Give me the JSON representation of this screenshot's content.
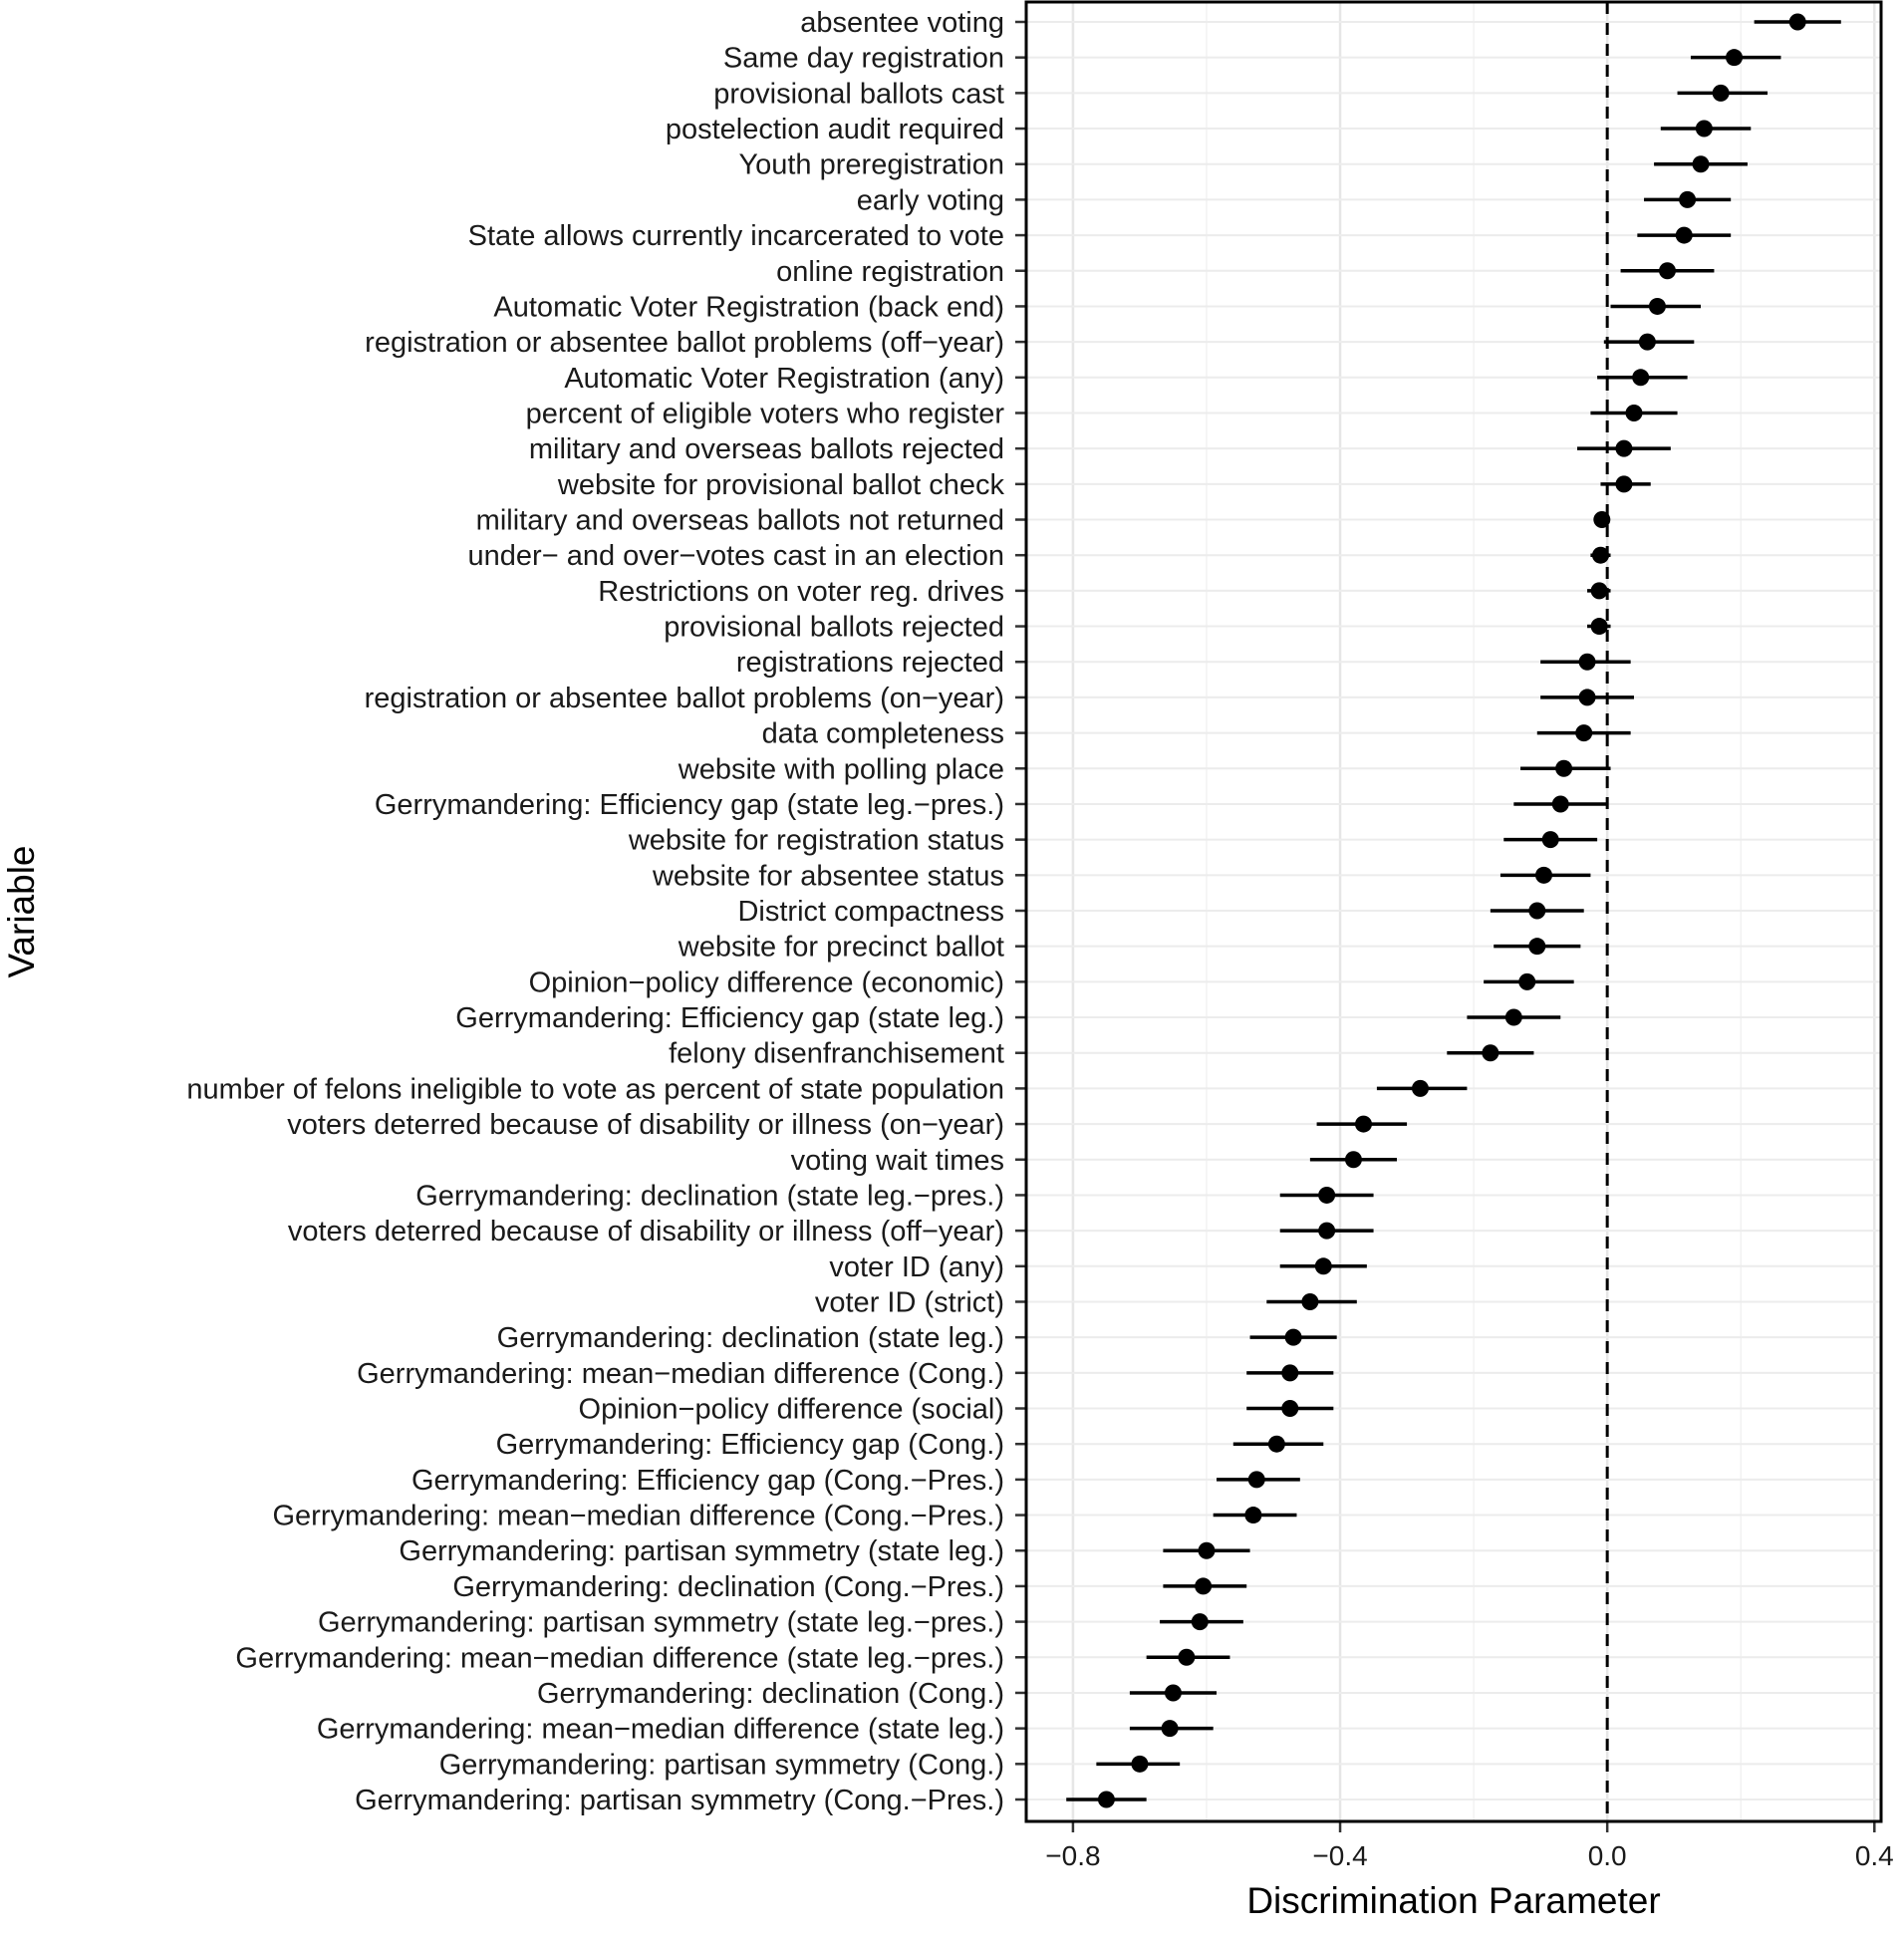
{
  "chart_data": {
    "type": "scatter",
    "orientation": "horizontal",
    "title": "",
    "xlabel": "Discrimination Parameter",
    "ylabel": "Variable",
    "xlim": [
      -0.87,
      0.41
    ],
    "x_ticks": [
      -0.8,
      -0.4,
      0.0,
      0.4
    ],
    "x_tick_labels": [
      "−0.8",
      "−0.4",
      "0.0",
      "0.4"
    ],
    "reference_line": {
      "x": 0.0,
      "style": "dashed"
    },
    "grid": true,
    "points": [
      {
        "label": "absentee voting",
        "estimate": 0.285,
        "lower": 0.22,
        "upper": 0.35
      },
      {
        "label": "Same day registration",
        "estimate": 0.19,
        "lower": 0.125,
        "upper": 0.26
      },
      {
        "label": "provisional ballots cast",
        "estimate": 0.17,
        "lower": 0.105,
        "upper": 0.24
      },
      {
        "label": "postelection audit required",
        "estimate": 0.145,
        "lower": 0.08,
        "upper": 0.215
      },
      {
        "label": "Youth preregistration",
        "estimate": 0.14,
        "lower": 0.07,
        "upper": 0.21
      },
      {
        "label": "early voting",
        "estimate": 0.12,
        "lower": 0.055,
        "upper": 0.185
      },
      {
        "label": "State allows currently incarcerated to vote",
        "estimate": 0.115,
        "lower": 0.045,
        "upper": 0.185
      },
      {
        "label": "online registration",
        "estimate": 0.09,
        "lower": 0.02,
        "upper": 0.16
      },
      {
        "label": "Automatic Voter Registration (back end)",
        "estimate": 0.075,
        "lower": 0.005,
        "upper": 0.14
      },
      {
        "label": "registration or absentee ballot problems (off−year)",
        "estimate": 0.06,
        "lower": -0.005,
        "upper": 0.13
      },
      {
        "label": "Automatic Voter Registration (any)",
        "estimate": 0.05,
        "lower": -0.015,
        "upper": 0.12
      },
      {
        "label": "percent of eligible voters who register",
        "estimate": 0.04,
        "lower": -0.025,
        "upper": 0.105
      },
      {
        "label": "military and overseas ballots rejected",
        "estimate": 0.025,
        "lower": -0.045,
        "upper": 0.095
      },
      {
        "label": "website for provisional ballot check",
        "estimate": 0.025,
        "lower": -0.01,
        "upper": 0.065
      },
      {
        "label": "military and overseas ballots not returned",
        "estimate": -0.008,
        "lower": -0.02,
        "upper": 0.004
      },
      {
        "label": "under− and over−votes cast in an election",
        "estimate": -0.01,
        "lower": -0.025,
        "upper": 0.005
      },
      {
        "label": "Restrictions on voter reg. drives",
        "estimate": -0.012,
        "lower": -0.03,
        "upper": 0.005
      },
      {
        "label": "provisional ballots rejected",
        "estimate": -0.012,
        "lower": -0.03,
        "upper": 0.005
      },
      {
        "label": "registrations rejected",
        "estimate": -0.03,
        "lower": -0.1,
        "upper": 0.035
      },
      {
        "label": "registration or absentee ballot problems (on−year)",
        "estimate": -0.03,
        "lower": -0.1,
        "upper": 0.04
      },
      {
        "label": "data completeness",
        "estimate": -0.035,
        "lower": -0.105,
        "upper": 0.035
      },
      {
        "label": "website with polling place",
        "estimate": -0.065,
        "lower": -0.13,
        "upper": 0.005
      },
      {
        "label": "Gerrymandering: Efficiency gap (state leg.−pres.)",
        "estimate": -0.07,
        "lower": -0.14,
        "upper": 0.0
      },
      {
        "label": "website for registration status",
        "estimate": -0.085,
        "lower": -0.155,
        "upper": -0.015
      },
      {
        "label": "website for absentee status",
        "estimate": -0.095,
        "lower": -0.16,
        "upper": -0.025
      },
      {
        "label": "District compactness",
        "estimate": -0.105,
        "lower": -0.175,
        "upper": -0.035
      },
      {
        "label": "website for precinct ballot",
        "estimate": -0.105,
        "lower": -0.17,
        "upper": -0.04
      },
      {
        "label": "Opinion−policy difference (economic)",
        "estimate": -0.12,
        "lower": -0.185,
        "upper": -0.05
      },
      {
        "label": "Gerrymandering: Efficiency gap (state leg.)",
        "estimate": -0.14,
        "lower": -0.21,
        "upper": -0.07
      },
      {
        "label": "felony disenfranchisement",
        "estimate": -0.175,
        "lower": -0.24,
        "upper": -0.11
      },
      {
        "label": "number of felons ineligible to vote as percent of state population",
        "estimate": -0.28,
        "lower": -0.345,
        "upper": -0.21
      },
      {
        "label": "voters deterred because of disability or illness (on−year)",
        "estimate": -0.365,
        "lower": -0.435,
        "upper": -0.3
      },
      {
        "label": "voting wait times",
        "estimate": -0.38,
        "lower": -0.445,
        "upper": -0.315
      },
      {
        "label": "Gerrymandering: declination (state leg.−pres.)",
        "estimate": -0.42,
        "lower": -0.49,
        "upper": -0.35
      },
      {
        "label": "voters deterred because of disability or illness (off−year)",
        "estimate": -0.42,
        "lower": -0.49,
        "upper": -0.35
      },
      {
        "label": "voter ID (any)",
        "estimate": -0.425,
        "lower": -0.49,
        "upper": -0.36
      },
      {
        "label": "voter ID (strict)",
        "estimate": -0.445,
        "lower": -0.51,
        "upper": -0.375
      },
      {
        "label": "Gerrymandering: declination (state leg.)",
        "estimate": -0.47,
        "lower": -0.535,
        "upper": -0.405
      },
      {
        "label": "Gerrymandering: mean−median difference (Cong.)",
        "estimate": -0.475,
        "lower": -0.54,
        "upper": -0.41
      },
      {
        "label": "Opinion−policy difference (social)",
        "estimate": -0.475,
        "lower": -0.54,
        "upper": -0.41
      },
      {
        "label": "Gerrymandering: Efficiency gap (Cong.)",
        "estimate": -0.495,
        "lower": -0.56,
        "upper": -0.425
      },
      {
        "label": "Gerrymandering: Efficiency gap (Cong.−Pres.)",
        "estimate": -0.525,
        "lower": -0.585,
        "upper": -0.46
      },
      {
        "label": "Gerrymandering: mean−median difference (Cong.−Pres.)",
        "estimate": -0.53,
        "lower": -0.59,
        "upper": -0.465
      },
      {
        "label": "Gerrymandering: partisan symmetry (state leg.)",
        "estimate": -0.6,
        "lower": -0.665,
        "upper": -0.535
      },
      {
        "label": "Gerrymandering: declination (Cong.−Pres.)",
        "estimate": -0.605,
        "lower": -0.665,
        "upper": -0.54
      },
      {
        "label": "Gerrymandering: partisan symmetry (state leg.−pres.)",
        "estimate": -0.61,
        "lower": -0.67,
        "upper": -0.545
      },
      {
        "label": "Gerrymandering: mean−median difference (state leg.−pres.)",
        "estimate": -0.63,
        "lower": -0.69,
        "upper": -0.565
      },
      {
        "label": "Gerrymandering: declination (Cong.)",
        "estimate": -0.65,
        "lower": -0.715,
        "upper": -0.585
      },
      {
        "label": "Gerrymandering: mean−median difference (state leg.)",
        "estimate": -0.655,
        "lower": -0.715,
        "upper": -0.59
      },
      {
        "label": "Gerrymandering: partisan symmetry (Cong.)",
        "estimate": -0.7,
        "lower": -0.765,
        "upper": -0.64
      },
      {
        "label": "Gerrymandering: partisan symmetry (Cong.−Pres.)",
        "estimate": -0.75,
        "lower": -0.81,
        "upper": -0.69
      }
    ]
  }
}
